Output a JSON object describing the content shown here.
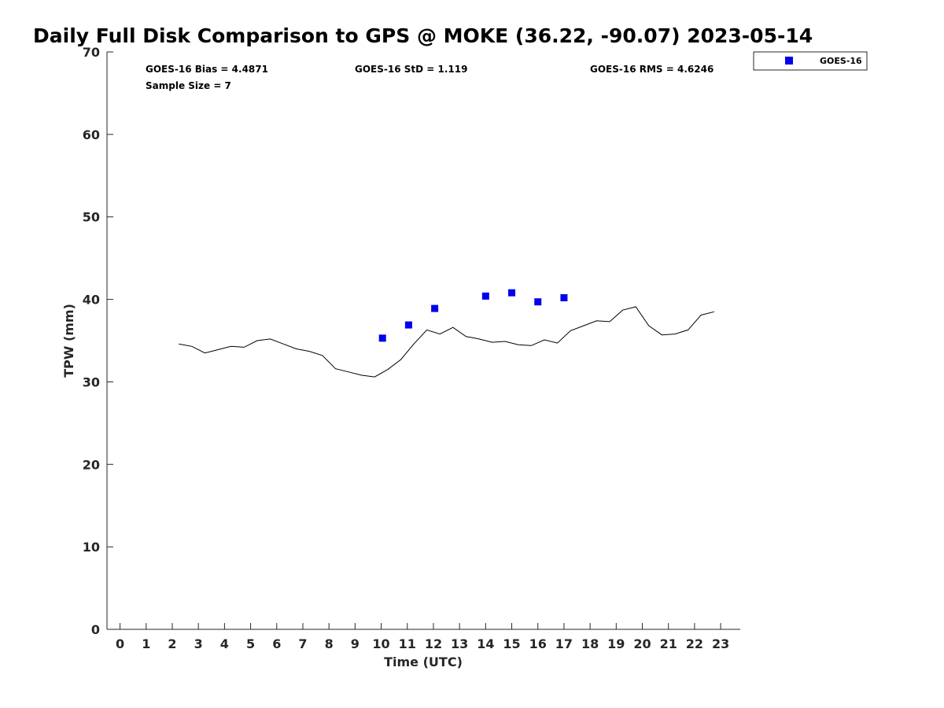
{
  "chart_data": {
    "type": "scatter",
    "title": "Daily Full Disk Comparison to GPS @ MOKE (36.22, -90.07) 2023-05-14",
    "xlabel": "Time (UTC)",
    "ylabel": "TPW (mm)",
    "xlim": [
      -0.5,
      23.75
    ],
    "ylim": [
      0,
      70
    ],
    "x_ticks": [
      0,
      1,
      2,
      3,
      4,
      5,
      6,
      7,
      8,
      9,
      10,
      11,
      12,
      13,
      14,
      15,
      16,
      17,
      18,
      19,
      20,
      21,
      22,
      23
    ],
    "y_ticks": [
      0,
      10,
      20,
      30,
      40,
      50,
      60,
      70
    ],
    "grid": false,
    "legend_position": "top-right-outside",
    "stats": {
      "bias": "GOES-16 Bias = 4.4871",
      "std": "GOES-16 StD = 1.119",
      "rms": "GOES-16 RMS = 4.6246",
      "sample_size": "Sample Size = 7"
    },
    "series": [
      {
        "name": "GOES-16",
        "kind": "scatter",
        "marker": "square",
        "color": "#0000ee",
        "x": [
          10.05,
          11.05,
          12.05,
          14.0,
          15.0,
          16.0,
          17.0
        ],
        "y": [
          35.3,
          36.9,
          38.9,
          40.4,
          40.8,
          39.7,
          40.2
        ]
      },
      {
        "kind": "line",
        "color": "#000000",
        "x": [
          2.25,
          2.75,
          3.25,
          3.75,
          4.25,
          4.75,
          5.25,
          5.75,
          6.25,
          6.75,
          7.25,
          7.75,
          8.25,
          8.75,
          9.25,
          9.75,
          10.25,
          10.75,
          11.25,
          11.75,
          12.25,
          12.75,
          13.25,
          13.75,
          14.25,
          14.75,
          15.25,
          15.75,
          16.25,
          16.75,
          17.25,
          17.75,
          18.25,
          18.75,
          19.25,
          19.75,
          20.25,
          20.75,
          21.25,
          21.75,
          22.25,
          22.75
        ],
        "y": [
          34.6,
          34.3,
          33.5,
          33.9,
          34.3,
          34.2,
          35.0,
          35.2,
          34.6,
          34.0,
          33.7,
          33.2,
          31.6,
          31.2,
          30.8,
          30.6,
          31.5,
          32.7,
          34.6,
          36.3,
          35.8,
          36.6,
          35.5,
          35.2,
          34.8,
          34.9,
          34.5,
          34.4,
          35.1,
          34.7,
          36.2,
          36.8,
          37.4,
          37.3,
          38.7,
          39.1,
          36.8,
          35.7,
          35.8,
          36.3,
          38.1,
          38.5
        ]
      }
    ]
  }
}
